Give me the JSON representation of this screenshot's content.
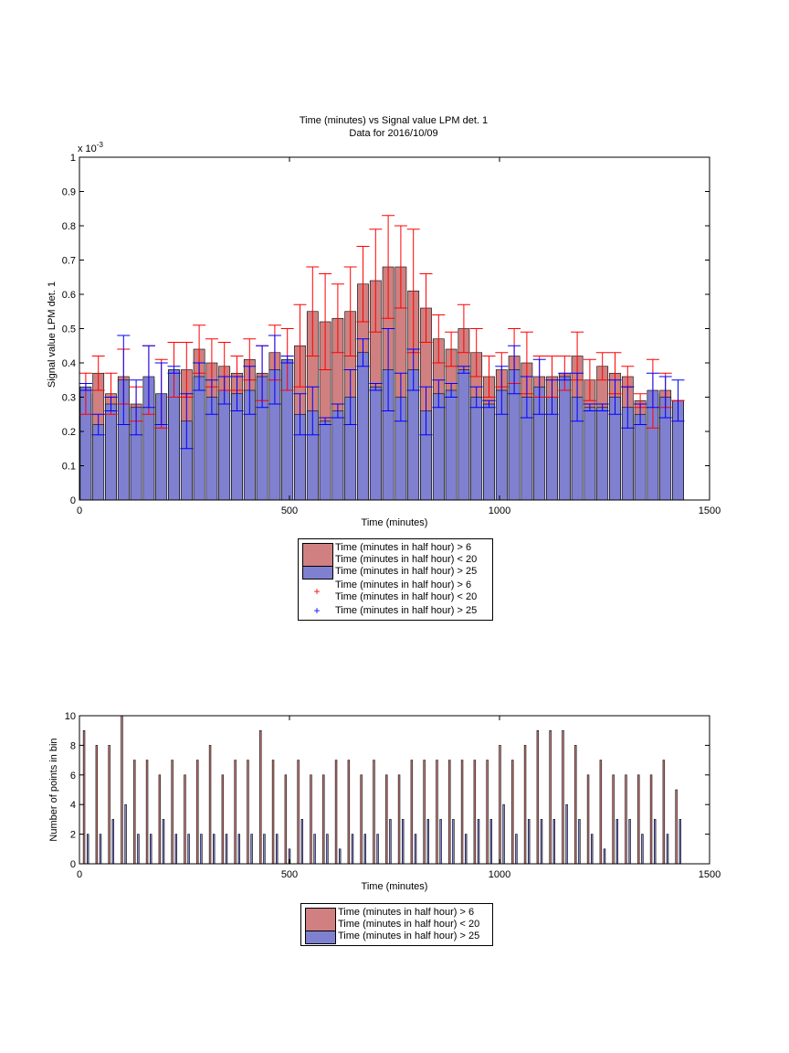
{
  "chart_data": [
    {
      "type": "bar",
      "title": "Time (minutes) vs Signal value LPM det. 1",
      "subtitle": "Data for 2016/10/09",
      "xlabel": "Time (minutes)",
      "ylabel": "Signal value LPM det. 1",
      "y_exponent_label": "x 10",
      "y_exponent_power": "-3",
      "xlim": [
        0,
        1500
      ],
      "ylim": [
        0,
        1.0
      ],
      "x_ticks": [
        "0",
        "500",
        "1000",
        "1500"
      ],
      "y_ticks": [
        "0",
        "0.1",
        "0.2",
        "0.3",
        "0.4",
        "0.5",
        "0.6",
        "0.7",
        "0.8",
        "0.9",
        "1"
      ],
      "grid": false,
      "legend_position": "below",
      "x": [
        15,
        45,
        75,
        105,
        135,
        165,
        195,
        225,
        255,
        285,
        315,
        345,
        375,
        405,
        435,
        465,
        495,
        525,
        555,
        585,
        615,
        645,
        675,
        705,
        735,
        765,
        795,
        825,
        855,
        885,
        915,
        945,
        975,
        1005,
        1035,
        1065,
        1095,
        1125,
        1155,
        1185,
        1215,
        1245,
        1275,
        1305,
        1335,
        1365,
        1395,
        1425
      ],
      "series": [
        {
          "name": "Time (minutes in half hour) > 6\nTime (minutes in half hour) < 20",
          "color": "#d08080",
          "values": [
            0.31,
            0.37,
            0.31,
            0.36,
            0.28,
            0.35,
            0.31,
            0.38,
            0.38,
            0.44,
            0.4,
            0.39,
            0.37,
            0.41,
            0.37,
            0.43,
            0.41,
            0.45,
            0.55,
            0.52,
            0.53,
            0.55,
            0.63,
            0.64,
            0.68,
            0.68,
            0.61,
            0.56,
            0.47,
            0.44,
            0.5,
            0.43,
            0.36,
            0.38,
            0.42,
            0.4,
            0.36,
            0.36,
            0.37,
            0.42,
            0.35,
            0.39,
            0.37,
            0.36,
            0.29,
            0.31,
            0.32,
            0.29
          ],
          "err": [
            0.06,
            0.05,
            0.06,
            0.08,
            0.05,
            0.1,
            0.1,
            0.08,
            0.08,
            0.07,
            0.07,
            0.07,
            0.05,
            0.06,
            0.08,
            0.08,
            0.09,
            0.12,
            0.13,
            0.14,
            0.1,
            0.13,
            0.11,
            0.15,
            0.15,
            0.12,
            0.18,
            0.1,
            0.07,
            0.05,
            0.07,
            0.07,
            0.06,
            0.05,
            0.08,
            0.09,
            0.06,
            0.06,
            0.05,
            0.07,
            0.06,
            0.04,
            0.06,
            0.03,
            0.02,
            0.1,
            0.05,
            0.0
          ]
        },
        {
          "name": "Time (minutes in half hour) > 25",
          "color": "#8080d0",
          "values": [
            0.33,
            0.22,
            0.28,
            0.35,
            0.27,
            0.36,
            0.31,
            0.38,
            0.23,
            0.36,
            0.3,
            0.32,
            0.31,
            0.32,
            0.36,
            0.38,
            0.41,
            0.25,
            0.26,
            0.23,
            0.26,
            0.3,
            0.43,
            0.33,
            0.38,
            0.3,
            0.38,
            0.26,
            0.31,
            0.32,
            0.38,
            0.3,
            0.28,
            0.32,
            0.38,
            0.3,
            0.33,
            0.3,
            0.36,
            0.3,
            0.27,
            0.27,
            0.3,
            0.27,
            0.25,
            0.32,
            0.3,
            0.29
          ],
          "err": [
            0.01,
            0.03,
            0.02,
            0.13,
            0.08,
            0.09,
            0.09,
            0.01,
            0.08,
            0.04,
            0.05,
            0.04,
            0.05,
            0.07,
            0.09,
            0.1,
            0.01,
            0.06,
            0.07,
            0.01,
            0.02,
            0.08,
            0.04,
            0.01,
            0.12,
            0.07,
            0.06,
            0.07,
            0.04,
            0.02,
            0.01,
            0.03,
            0.01,
            0.07,
            0.07,
            0.06,
            0.08,
            0.05,
            0.01,
            0.07,
            0.01,
            0.01,
            0.05,
            0.06,
            0.03,
            0.05,
            0.06,
            0.06
          ]
        }
      ],
      "legend": [
        {
          "type": "patch",
          "color": "#d08080",
          "lines": [
            "Time (minutes in half hour) > 6",
            "Time (minutes in half hour) < 20"
          ]
        },
        {
          "type": "patch",
          "color": "#8080d0",
          "lines": [
            "Time (minutes in half hour) > 25"
          ]
        },
        {
          "type": "marker",
          "color": "#ff0000",
          "lines": [
            "Time (minutes in half hour) > 6",
            "Time (minutes in half hour) < 20"
          ]
        },
        {
          "type": "marker",
          "color": "#0000ff",
          "lines": [
            "Time (minutes in half hour) > 25"
          ]
        }
      ]
    },
    {
      "type": "bar",
      "xlabel": "Time (minutes)",
      "ylabel": "Number of points in bin",
      "xlim": [
        0,
        1500
      ],
      "ylim": [
        0,
        10
      ],
      "x_ticks": [
        "0",
        "500",
        "1000",
        "1500"
      ],
      "y_ticks": [
        "0",
        "2",
        "4",
        "6",
        "8",
        "10"
      ],
      "grid": false,
      "legend_position": "below",
      "x": [
        15,
        45,
        75,
        105,
        135,
        165,
        195,
        225,
        255,
        285,
        315,
        345,
        375,
        405,
        435,
        465,
        495,
        525,
        555,
        585,
        615,
        645,
        675,
        705,
        735,
        765,
        795,
        825,
        855,
        885,
        915,
        945,
        975,
        1005,
        1035,
        1065,
        1095,
        1125,
        1155,
        1185,
        1215,
        1245,
        1275,
        1305,
        1335,
        1365,
        1395,
        1425
      ],
      "series": [
        {
          "name": "Time (minutes in half hour) > 6\nTime (minutes in half hour) < 20",
          "color": "#d08080",
          "values": [
            9,
            8,
            8,
            10,
            7,
            7,
            6,
            7,
            6,
            7,
            8,
            6,
            7,
            7,
            9,
            7,
            6,
            7,
            6,
            6,
            7,
            7,
            6,
            7,
            6,
            6,
            7,
            7,
            7,
            7,
            7,
            7,
            7,
            8,
            7,
            8,
            9,
            9,
            9,
            8,
            6,
            7,
            6,
            6,
            6,
            6,
            7,
            5
          ]
        },
        {
          "name": "Time (minutes in half hour) > 25",
          "color": "#8080d0",
          "values": [
            2,
            2,
            3,
            4,
            2,
            2,
            3,
            2,
            2,
            2,
            2,
            2,
            2,
            2,
            2,
            2,
            1,
            3,
            2,
            2,
            1,
            2,
            2,
            2,
            3,
            3,
            2,
            3,
            3,
            3,
            2,
            3,
            3,
            4,
            2,
            3,
            3,
            3,
            4,
            3,
            2,
            1,
            3,
            3,
            2,
            3,
            2,
            3
          ]
        }
      ],
      "legend": [
        {
          "type": "patch",
          "color": "#d08080",
          "lines": [
            "Time (minutes in half hour) > 6",
            "Time (minutes in half hour) < 20"
          ]
        },
        {
          "type": "patch",
          "color": "#8080d0",
          "lines": [
            "Time (minutes in half hour) > 25"
          ]
        }
      ]
    }
  ]
}
